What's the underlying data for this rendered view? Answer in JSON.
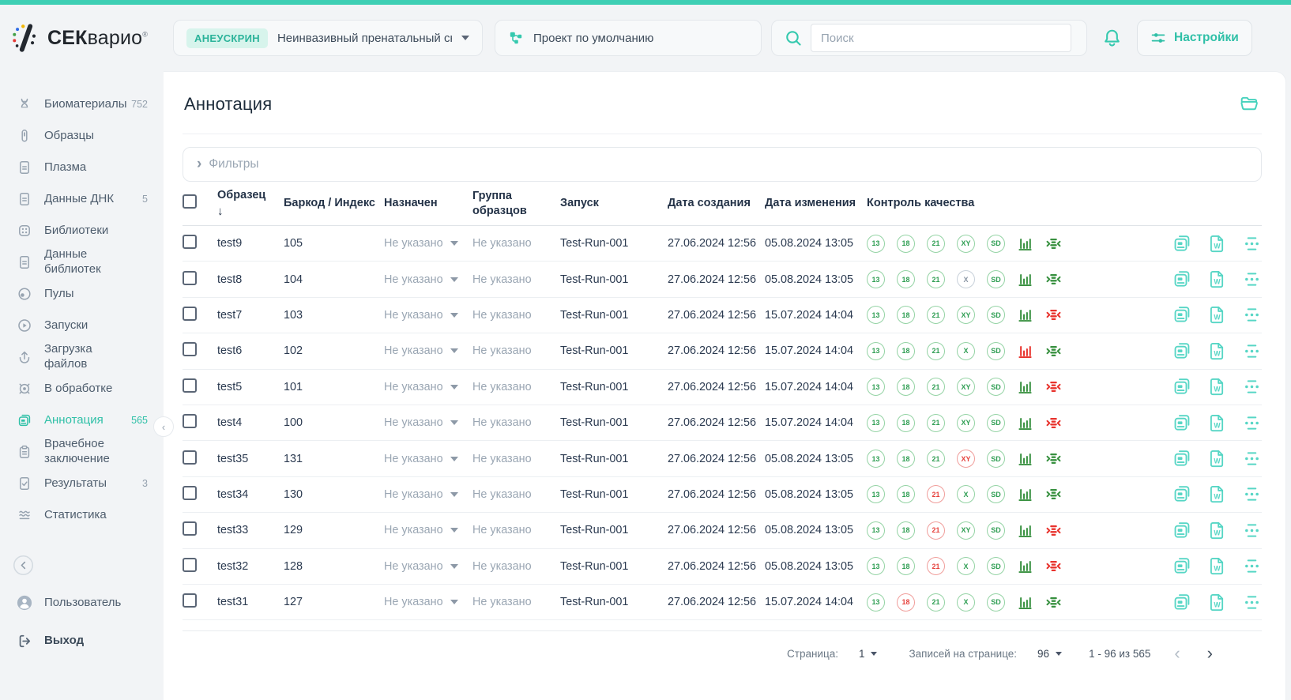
{
  "brand": {
    "logo_text_bold": "СЕК",
    "logo_text_rest": "варио",
    "registered": "®"
  },
  "header": {
    "screening": {
      "badge": "АНЕУСКРИН",
      "label": "Неинвазивный пренатальный скрининг"
    },
    "project": {
      "label": "Проект по умолчанию"
    },
    "search": {
      "placeholder": "Поиск"
    },
    "settings": {
      "label": "Настройки"
    }
  },
  "sidebar": {
    "items": [
      {
        "id": "biomaterials",
        "label": "Биоматериалы",
        "count": "752",
        "icon": "dna"
      },
      {
        "id": "samples",
        "label": "Образцы",
        "count": "",
        "icon": "tube"
      },
      {
        "id": "plasma",
        "label": "Плазма",
        "count": "",
        "icon": "document"
      },
      {
        "id": "dna-data",
        "label": "Данные ДНК",
        "count": "5",
        "icon": "document"
      },
      {
        "id": "libraries",
        "label": "Библиотеки",
        "count": "",
        "icon": "library"
      },
      {
        "id": "library-data",
        "label": "Данные библиотек",
        "count": "",
        "icon": "document"
      },
      {
        "id": "pools",
        "label": "Пулы",
        "count": "",
        "icon": "pool"
      },
      {
        "id": "runs",
        "label": "Запуски",
        "count": "",
        "icon": "play"
      },
      {
        "id": "file-upload",
        "label": "Загрузка файлов",
        "count": "",
        "icon": "upload"
      },
      {
        "id": "processing",
        "label": "В обработке",
        "count": "",
        "icon": "gear"
      },
      {
        "id": "annotation",
        "label": "Аннотация",
        "count": "565",
        "icon": "annotation",
        "active": true
      },
      {
        "id": "medical-report",
        "label": "Врачебное заключение",
        "count": "",
        "icon": "clipboard"
      },
      {
        "id": "results",
        "label": "Результаты",
        "count": "3",
        "icon": "doc-check"
      },
      {
        "id": "statistics",
        "label": "Статистика",
        "count": "",
        "icon": "waves"
      }
    ],
    "user": {
      "label": "Пользователь"
    },
    "logout": {
      "label": "Выход"
    }
  },
  "page": {
    "title": "Аннотация",
    "filters_label": "Фильтры"
  },
  "table": {
    "headers": {
      "sample": "Образец",
      "barcode": "Баркод / Индекс",
      "assigned": "Назначен",
      "group": "Группа образцов",
      "run": "Запуск",
      "created": "Дата создания",
      "modified": "Дата изменения",
      "qc": "Контроль качества"
    },
    "sort_indicator": "↓",
    "placeholder_value": "Не указано",
    "rows": [
      {
        "sample": "test9",
        "barcode": "105",
        "run": "Test-Run-001",
        "created": "27.06.2024 12:56",
        "modified": "05.08.2024 13:05",
        "qc": [
          {
            "label": "13",
            "state": "green"
          },
          {
            "label": "18",
            "state": "green"
          },
          {
            "label": "21",
            "state": "green"
          },
          {
            "label": "XY",
            "state": "green"
          },
          {
            "label": "SD",
            "state": "green"
          }
        ],
        "bars": "green",
        "align": "green"
      },
      {
        "sample": "test8",
        "barcode": "104",
        "run": "Test-Run-001",
        "created": "27.06.2024 12:56",
        "modified": "05.08.2024 13:05",
        "qc": [
          {
            "label": "13",
            "state": "green"
          },
          {
            "label": "18",
            "state": "green"
          },
          {
            "label": "21",
            "state": "green"
          },
          {
            "label": "X",
            "state": "gray"
          },
          {
            "label": "SD",
            "state": "green"
          }
        ],
        "bars": "green",
        "align": "green"
      },
      {
        "sample": "test7",
        "barcode": "103",
        "run": "Test-Run-001",
        "created": "27.06.2024 12:56",
        "modified": "15.07.2024 14:04",
        "qc": [
          {
            "label": "13",
            "state": "green"
          },
          {
            "label": "18",
            "state": "green"
          },
          {
            "label": "21",
            "state": "green"
          },
          {
            "label": "XY",
            "state": "green"
          },
          {
            "label": "SD",
            "state": "green"
          }
        ],
        "bars": "green",
        "align": "red"
      },
      {
        "sample": "test6",
        "barcode": "102",
        "run": "Test-Run-001",
        "created": "27.06.2024 12:56",
        "modified": "15.07.2024 14:04",
        "qc": [
          {
            "label": "13",
            "state": "green"
          },
          {
            "label": "18",
            "state": "green"
          },
          {
            "label": "21",
            "state": "green"
          },
          {
            "label": "X",
            "state": "green"
          },
          {
            "label": "SD",
            "state": "green"
          }
        ],
        "bars": "red",
        "align": "green"
      },
      {
        "sample": "test5",
        "barcode": "101",
        "run": "Test-Run-001",
        "created": "27.06.2024 12:56",
        "modified": "15.07.2024 14:04",
        "qc": [
          {
            "label": "13",
            "state": "green"
          },
          {
            "label": "18",
            "state": "green"
          },
          {
            "label": "21",
            "state": "green"
          },
          {
            "label": "XY",
            "state": "green"
          },
          {
            "label": "SD",
            "state": "green"
          }
        ],
        "bars": "green",
        "align": "red"
      },
      {
        "sample": "test4",
        "barcode": "100",
        "run": "Test-Run-001",
        "created": "27.06.2024 12:56",
        "modified": "15.07.2024 14:04",
        "qc": [
          {
            "label": "13",
            "state": "green"
          },
          {
            "label": "18",
            "state": "green"
          },
          {
            "label": "21",
            "state": "green"
          },
          {
            "label": "XY",
            "state": "green"
          },
          {
            "label": "SD",
            "state": "green"
          }
        ],
        "bars": "green",
        "align": "red"
      },
      {
        "sample": "test35",
        "barcode": "131",
        "run": "Test-Run-001",
        "created": "27.06.2024 12:56",
        "modified": "05.08.2024 13:05",
        "qc": [
          {
            "label": "13",
            "state": "green"
          },
          {
            "label": "18",
            "state": "green"
          },
          {
            "label": "21",
            "state": "green"
          },
          {
            "label": "XY",
            "state": "red"
          },
          {
            "label": "SD",
            "state": "green"
          }
        ],
        "bars": "green",
        "align": "green"
      },
      {
        "sample": "test34",
        "barcode": "130",
        "run": "Test-Run-001",
        "created": "27.06.2024 12:56",
        "modified": "05.08.2024 13:05",
        "qc": [
          {
            "label": "13",
            "state": "green"
          },
          {
            "label": "18",
            "state": "green"
          },
          {
            "label": "21",
            "state": "red"
          },
          {
            "label": "X",
            "state": "green"
          },
          {
            "label": "SD",
            "state": "green"
          }
        ],
        "bars": "green",
        "align": "green"
      },
      {
        "sample": "test33",
        "barcode": "129",
        "run": "Test-Run-001",
        "created": "27.06.2024 12:56",
        "modified": "05.08.2024 13:05",
        "qc": [
          {
            "label": "13",
            "state": "green"
          },
          {
            "label": "18",
            "state": "green"
          },
          {
            "label": "21",
            "state": "red"
          },
          {
            "label": "XY",
            "state": "green"
          },
          {
            "label": "SD",
            "state": "green"
          }
        ],
        "bars": "green",
        "align": "red"
      },
      {
        "sample": "test32",
        "barcode": "128",
        "run": "Test-Run-001",
        "created": "27.06.2024 12:56",
        "modified": "05.08.2024 13:05",
        "qc": [
          {
            "label": "13",
            "state": "green"
          },
          {
            "label": "18",
            "state": "green"
          },
          {
            "label": "21",
            "state": "red"
          },
          {
            "label": "X",
            "state": "green"
          },
          {
            "label": "SD",
            "state": "green"
          }
        ],
        "bars": "green",
        "align": "red"
      },
      {
        "sample": "test31",
        "barcode": "127",
        "run": "Test-Run-001",
        "created": "27.06.2024 12:56",
        "modified": "15.07.2024 14:04",
        "qc": [
          {
            "label": "13",
            "state": "green"
          },
          {
            "label": "18",
            "state": "red"
          },
          {
            "label": "21",
            "state": "green"
          },
          {
            "label": "X",
            "state": "green"
          },
          {
            "label": "SD",
            "state": "green"
          }
        ],
        "bars": "green",
        "align": "green"
      }
    ]
  },
  "footer": {
    "page_label": "Страница:",
    "page_value": "1",
    "per_page_label": "Записей на странице:",
    "per_page_value": "96",
    "range": "1 - 96 из 565"
  },
  "colors": {
    "accent": "#2fc0a7",
    "qc_green": "#2f9e53",
    "qc_red": "#e6423d",
    "qc_gray": "#8a96a4",
    "action_teal": "#57d6c5"
  }
}
